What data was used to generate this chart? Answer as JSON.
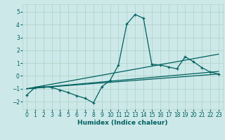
{
  "xlabel": "Humidex (Indice chaleur)",
  "xlim": [
    -0.5,
    23.5
  ],
  "ylim": [
    -2.6,
    5.6
  ],
  "xticks": [
    0,
    1,
    2,
    3,
    4,
    5,
    6,
    7,
    8,
    9,
    10,
    11,
    12,
    13,
    14,
    15,
    16,
    17,
    18,
    19,
    20,
    21,
    22,
    23
  ],
  "yticks": [
    -2,
    -1,
    0,
    1,
    2,
    3,
    4,
    5
  ],
  "bg_color": "#cde8e8",
  "grid_color": "#b0d4cc",
  "line_color": "#006060",
  "curve_x": [
    0,
    1,
    2,
    3,
    4,
    5,
    6,
    7,
    8,
    9,
    10,
    11,
    12,
    13,
    14,
    15,
    16,
    17,
    18,
    19,
    20,
    21,
    22,
    23
  ],
  "curve_y": [
    -1.5,
    -0.9,
    -0.85,
    -0.9,
    -1.1,
    -1.3,
    -1.55,
    -1.75,
    -2.1,
    -0.85,
    -0.35,
    0.85,
    4.05,
    4.8,
    4.5,
    0.9,
    0.85,
    0.7,
    0.55,
    1.5,
    1.1,
    0.65,
    0.3,
    0.15
  ],
  "line1_x": [
    0,
    23
  ],
  "line1_y": [
    -1.0,
    0.15
  ],
  "line2_x": [
    0,
    23
  ],
  "line2_y": [
    -1.0,
    1.7
  ],
  "line3_x": [
    0,
    23
  ],
  "line3_y": [
    -1.0,
    0.35
  ]
}
